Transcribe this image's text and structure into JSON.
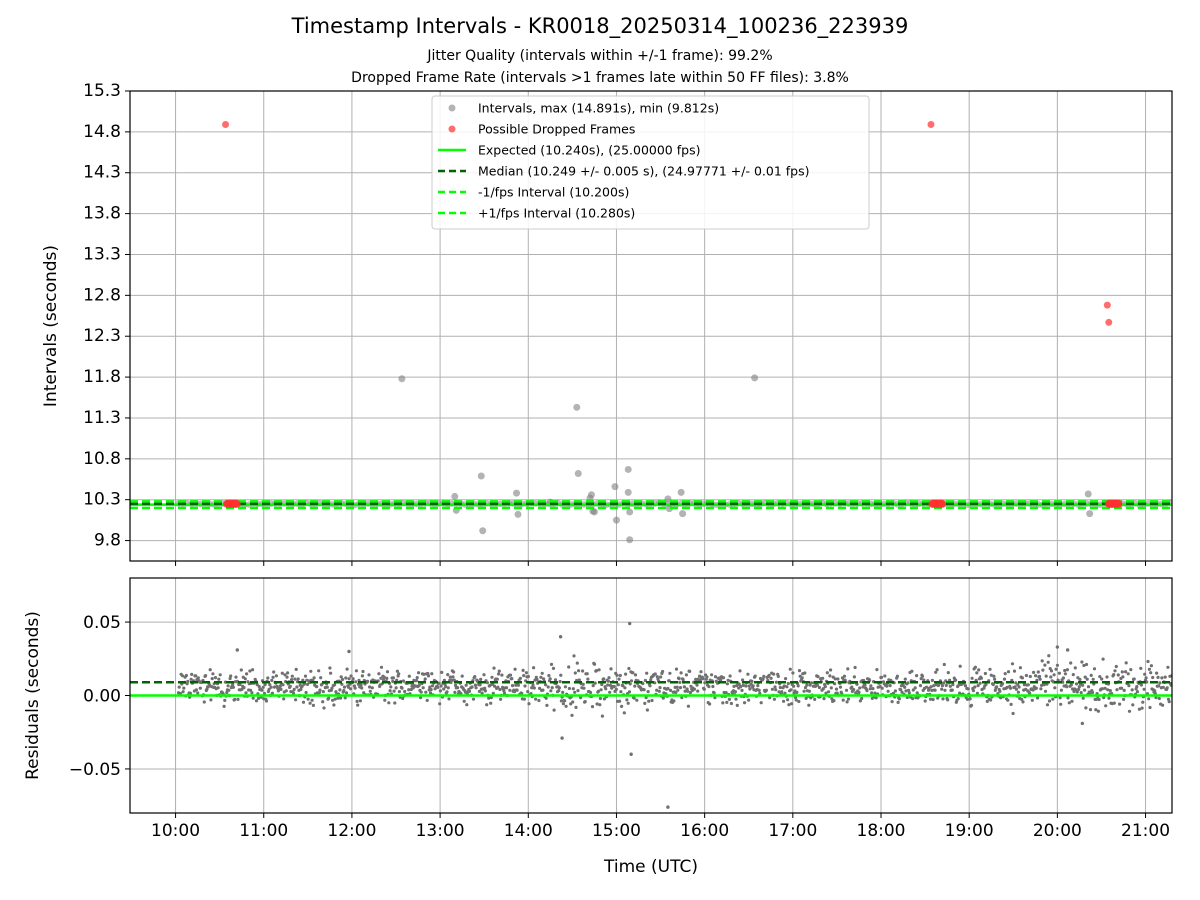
{
  "chart_data": [
    {
      "type": "scatter",
      "panel": "intervals",
      "title": "Timestamp Intervals - KR0018_20250314_100236_223939",
      "subtitle_1": "Jitter Quality (intervals within +/-1 frame): 99.2%",
      "subtitle_2": "Dropped Frame Rate (intervals >1 frames late within 50 FF files): 3.8%",
      "ylabel": "Intervals (seconds)",
      "xlim": [
        "09:29",
        "21:18"
      ],
      "ylim": [
        9.55,
        15.3
      ],
      "yticks": [
        9.8,
        10.3,
        10.8,
        11.3,
        11.8,
        12.3,
        12.8,
        13.3,
        13.8,
        14.3,
        14.8,
        15.3
      ],
      "ytick_labels": [
        "9.8",
        "10.3",
        "10.8",
        "11.3",
        "11.8",
        "12.3",
        "12.8",
        "13.3",
        "13.8",
        "14.3",
        "14.8",
        "15.3"
      ],
      "grid": true,
      "legend_position": "top-center",
      "legend": [
        "Intervals, max (14.891s), min (9.812s)",
        "Possible Dropped Frames",
        "Expected (10.240s), (25.00000 fps)",
        "Median (10.249 +/- 0.005 s), (24.97771 +/- 0.01 fps)",
        "-1/fps Interval (10.200s)",
        "+1/fps Interval (10.280s)"
      ],
      "lines": {
        "expected": 10.24,
        "median": 10.249,
        "minus_one_fps": 10.2,
        "plus_one_fps": 10.28
      },
      "series": [
        {
          "name": "Intervals, max (14.891s), min (9.812s)",
          "color": "#808080",
          "points": [
            [
              "12:34",
              11.78
            ],
            [
              "13:10",
              10.34
            ],
            [
              "13:11",
              10.17
            ],
            [
              "13:28",
              10.59
            ],
            [
              "13:29",
              9.92
            ],
            [
              "13:52",
              10.38
            ],
            [
              "13:53",
              10.12
            ],
            [
              "14:15",
              10.27
            ],
            [
              "14:33",
              11.43
            ],
            [
              "14:34",
              10.62
            ],
            [
              "14:42",
              10.32
            ],
            [
              "14:43",
              10.36
            ],
            [
              "14:44",
              10.16
            ],
            [
              "14:45",
              10.15
            ],
            [
              "14:59",
              10.46
            ],
            [
              "15:00",
              10.05
            ],
            [
              "15:08",
              10.67
            ],
            [
              "15:08",
              10.39
            ],
            [
              "15:09",
              10.15
            ],
            [
              "15:09",
              9.81
            ],
            [
              "15:35",
              10.31
            ],
            [
              "15:36",
              10.19
            ],
            [
              "15:44",
              10.39
            ],
            [
              "15:45",
              10.13
            ],
            [
              "16:34",
              11.79
            ],
            [
              "20:21",
              10.37
            ],
            [
              "20:22",
              10.13
            ]
          ]
        },
        {
          "name": "Possible Dropped Frames",
          "color": "#ff3b30",
          "points": [
            [
              "10:34",
              14.89
            ],
            [
              "18:34",
              14.89
            ],
            [
              "20:34",
              12.68
            ],
            [
              "20:35",
              12.47
            ]
          ]
        }
      ]
    },
    {
      "type": "scatter",
      "panel": "residuals",
      "xlabel": "Time (UTC)",
      "ylabel": "Residuals (seconds)",
      "xticks": [
        "10:00",
        "11:00",
        "12:00",
        "13:00",
        "14:00",
        "15:00",
        "16:00",
        "17:00",
        "18:00",
        "19:00",
        "20:00",
        "21:00"
      ],
      "xlim": [
        "09:29",
        "21:18"
      ],
      "ylim": [
        -0.08,
        0.08
      ],
      "yticks": [
        0.05,
        0.0,
        -0.05
      ],
      "ytick_labels": [
        "0.05",
        "0.00",
        "−0.05"
      ],
      "grid": true,
      "lines": {
        "zero": 0.0,
        "median_offset": 0.009
      },
      "outliers": [
        [
          "14:22",
          0.04
        ],
        [
          "14:23",
          -0.029
        ],
        [
          "15:09",
          0.049
        ],
        [
          "15:10",
          -0.04
        ],
        [
          "15:35",
          -0.076
        ],
        [
          "10:42",
          0.031
        ],
        [
          "11:58",
          0.03
        ],
        [
          "20:00",
          0.033
        ],
        [
          "20:07",
          0.031
        ],
        [
          "20:17",
          -0.019
        ]
      ]
    }
  ]
}
